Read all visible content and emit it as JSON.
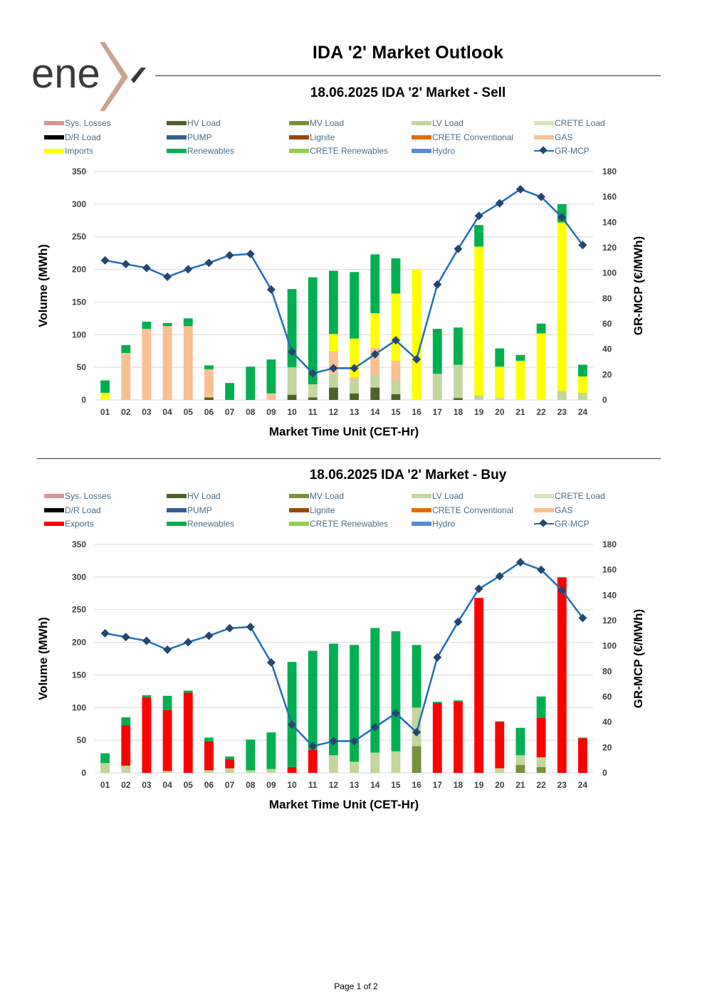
{
  "logo": {
    "text": "ene",
    "mark": "x"
  },
  "title": "IDA '2' Market Outlook",
  "page_label": "Page 1 of 2",
  "colors": {
    "Sys. Losses": "#d99594",
    "HV Load": "#4f6228",
    "MV Load": "#76923c",
    "LV Load": "#c3d69b",
    "CRETE Load": "#d7e4bc",
    "D/R Load": "#000000",
    "PUMP": "#376092",
    "Lignite": "#974806",
    "CRETE Conventional": "#e36c09",
    "GAS": "#fac090",
    "Imports": "#ffff00",
    "Exports": "#ff0000",
    "Renewables": "#00b050",
    "CRETE Renewables": "#92d050",
    "Hydro": "#558ed5",
    "GR-MCP_line": "#1f6fb5",
    "GR-MCP_marker": "#26466f"
  },
  "charts": [
    {
      "id": "sell",
      "title": "18.06.2025  IDA '2' Market - Sell",
      "legend": [
        "Sys. Losses",
        "HV Load",
        "MV Load",
        "LV Load",
        "CRETE Load",
        "D/R Load",
        "PUMP",
        "Lignite",
        "CRETE Conventional",
        "GAS",
        "Imports",
        "Renewables",
        "CRETE Renewables",
        "Hydro",
        "GR-MCP"
      ]
    },
    {
      "id": "buy",
      "title": "18.06.2025  IDA '2' Market - Buy",
      "legend": [
        "Sys. Losses",
        "HV Load",
        "MV Load",
        "LV Load",
        "CRETE Load",
        "D/R Load",
        "PUMP",
        "Lignite",
        "CRETE Conventional",
        "GAS",
        "Exports",
        "Renewables",
        "CRETE Renewables",
        "Hydro",
        "GR-MCP"
      ]
    }
  ],
  "chart_data": [
    {
      "type": "bar",
      "stacked": true,
      "title": "18.06.2025  IDA '2' Market - Sell",
      "xlabel": "Market Time Unit (CET-Hr)",
      "ylabel": "Volume (MWh)",
      "y2label": "GR-MCP (€/MWh)",
      "ylim": [
        0,
        350
      ],
      "yticks": [
        0,
        50,
        100,
        150,
        200,
        250,
        300,
        350
      ],
      "y2lim": [
        0,
        180
      ],
      "y2ticks": [
        0,
        20,
        40,
        60,
        80,
        100,
        120,
        140,
        160,
        180
      ],
      "categories": [
        "01",
        "02",
        "03",
        "04",
        "05",
        "06",
        "07",
        "08",
        "09",
        "10",
        "11",
        "12",
        "13",
        "14",
        "15",
        "16",
        "17",
        "18",
        "19",
        "20",
        "21",
        "22",
        "23",
        "24"
      ],
      "series": [
        {
          "name": "HV Load",
          "values": [
            0,
            0,
            0,
            0,
            0,
            4,
            0,
            0,
            0,
            8,
            4,
            19,
            10,
            19,
            9,
            0,
            0,
            3,
            0,
            0,
            0,
            0,
            0,
            0
          ]
        },
        {
          "name": "LV Load",
          "values": [
            0,
            0,
            0,
            0,
            0,
            0,
            0,
            0,
            0,
            42,
            20,
            21,
            20,
            20,
            21,
            0,
            40,
            51,
            7,
            3,
            0,
            0,
            14,
            11
          ]
        },
        {
          "name": "GAS",
          "values": [
            0,
            72,
            109,
            113,
            113,
            43,
            0,
            0,
            10,
            0,
            0,
            35,
            5,
            41,
            30,
            0,
            0,
            0,
            0,
            0,
            0,
            0,
            0,
            0
          ]
        },
        {
          "name": "Imports",
          "values": [
            11,
            0,
            0,
            0,
            0,
            0,
            0,
            0,
            0,
            0,
            0,
            26,
            59,
            53,
            103,
            200,
            0,
            0,
            228,
            48,
            60,
            102,
            258,
            25
          ]
        },
        {
          "name": "Renewables",
          "values": [
            19,
            12,
            11,
            5,
            12,
            6,
            26,
            51,
            52,
            120,
            164,
            97,
            102,
            90,
            54,
            0,
            69,
            57,
            33,
            28,
            9,
            15,
            28,
            18
          ]
        }
      ],
      "line": {
        "name": "GR-MCP",
        "axis": "y2",
        "values": [
          110,
          107,
          104,
          97,
          103,
          108,
          114,
          115,
          87,
          38,
          21,
          25,
          25,
          36,
          47,
          32,
          91,
          119,
          145,
          155,
          166,
          160,
          144,
          122
        ]
      }
    },
    {
      "type": "bar",
      "stacked": true,
      "title": "18.06.2025  IDA '2' Market - Buy",
      "xlabel": "Market Time Unit (CET-Hr)",
      "ylabel": "Volume (MWh)",
      "y2label": "GR-MCP (€/MWh)",
      "ylim": [
        0,
        350
      ],
      "yticks": [
        0,
        50,
        100,
        150,
        200,
        250,
        300,
        350
      ],
      "y2lim": [
        0,
        180
      ],
      "y2ticks": [
        0,
        20,
        40,
        60,
        80,
        100,
        120,
        140,
        160,
        180
      ],
      "categories": [
        "01",
        "02",
        "03",
        "04",
        "05",
        "06",
        "07",
        "08",
        "09",
        "10",
        "11",
        "12",
        "13",
        "14",
        "15",
        "16",
        "17",
        "18",
        "19",
        "20",
        "21",
        "22",
        "23",
        "24"
      ],
      "series": [
        {
          "name": "MV Load",
          "values": [
            0,
            0,
            0,
            0,
            0,
            0,
            0,
            0,
            0,
            0,
            0,
            0,
            0,
            0,
            0,
            41,
            0,
            0,
            0,
            0,
            12,
            9,
            0,
            0
          ]
        },
        {
          "name": "LV Load",
          "values": [
            15,
            11,
            0,
            3,
            0,
            4,
            7,
            4,
            6,
            0,
            0,
            27,
            17,
            31,
            33,
            59,
            0,
            0,
            0,
            7,
            15,
            15,
            0,
            0
          ]
        },
        {
          "name": "Exports",
          "values": [
            0,
            62,
            116,
            93,
            123,
            44,
            14,
            0,
            0,
            9,
            35,
            0,
            0,
            0,
            0,
            0,
            107,
            109,
            268,
            71,
            0,
            60,
            299,
            53
          ]
        },
        {
          "name": "Renewables",
          "values": [
            15,
            12,
            3,
            22,
            3,
            6,
            4,
            47,
            56,
            161,
            152,
            171,
            179,
            191,
            184,
            96,
            2,
            2,
            0,
            1,
            42,
            33,
            1,
            1
          ]
        }
      ],
      "line": {
        "name": "GR-MCP",
        "axis": "y2",
        "values": [
          110,
          107,
          104,
          97,
          103,
          108,
          114,
          115,
          87,
          38,
          21,
          25,
          25,
          36,
          47,
          32,
          91,
          119,
          145,
          155,
          166,
          160,
          144,
          122
        ]
      }
    }
  ]
}
